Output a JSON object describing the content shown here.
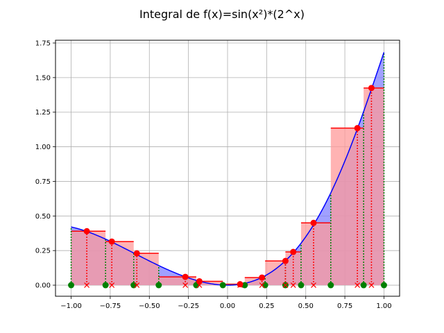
{
  "chart_data": {
    "type": "line",
    "title": "Integral de f(x)=sin(x²)*(2^x)",
    "xlabel": "",
    "ylabel": "",
    "xlim": [
      -1.1,
      1.1
    ],
    "ylim": [
      -0.08,
      1.77
    ],
    "grid": true,
    "x_ticks": [
      -1.0,
      -0.75,
      -0.5,
      -0.25,
      0.0,
      0.25,
      0.5,
      0.75,
      1.0
    ],
    "x_tick_labels": [
      "−1.00",
      "−0.75",
      "−0.50",
      "−0.25",
      "0.00",
      "0.25",
      "0.50",
      "0.75",
      "1.00"
    ],
    "y_ticks": [
      0.0,
      0.25,
      0.5,
      0.75,
      1.0,
      1.25,
      1.5,
      1.75
    ],
    "y_tick_labels": [
      "0.00",
      "0.25",
      "0.50",
      "0.75",
      "1.00",
      "1.25",
      "1.50",
      "1.75"
    ],
    "function_curve": {
      "color": "#0000ff",
      "fill_color": "#8080ff",
      "x_range": [
        -1.0,
        1.0
      ]
    },
    "partition_points": [
      -1.0,
      -0.78,
      -0.6,
      -0.44,
      -0.2,
      -0.03,
      0.11,
      0.24,
      0.37,
      0.47,
      0.66,
      0.87,
      1.0
    ],
    "sample_points": [
      {
        "x": -0.9,
        "y": 0.39
      },
      {
        "x": -0.74,
        "y": 0.315
      },
      {
        "x": -0.58,
        "y": 0.23
      },
      {
        "x": -0.27,
        "y": 0.06
      },
      {
        "x": -0.18,
        "y": 0.028
      },
      {
        "x": 0.08,
        "y": 0.007
      },
      {
        "x": 0.22,
        "y": 0.055
      },
      {
        "x": 0.37,
        "y": 0.175
      },
      {
        "x": 0.42,
        "y": 0.24
      },
      {
        "x": 0.55,
        "y": 0.45
      },
      {
        "x": 0.83,
        "y": 1.135
      },
      {
        "x": 0.92,
        "y": 1.425
      }
    ],
    "rect_color": "#ff0000",
    "rect_fill": "#ff9999",
    "partition_marker_color": "#008000"
  }
}
